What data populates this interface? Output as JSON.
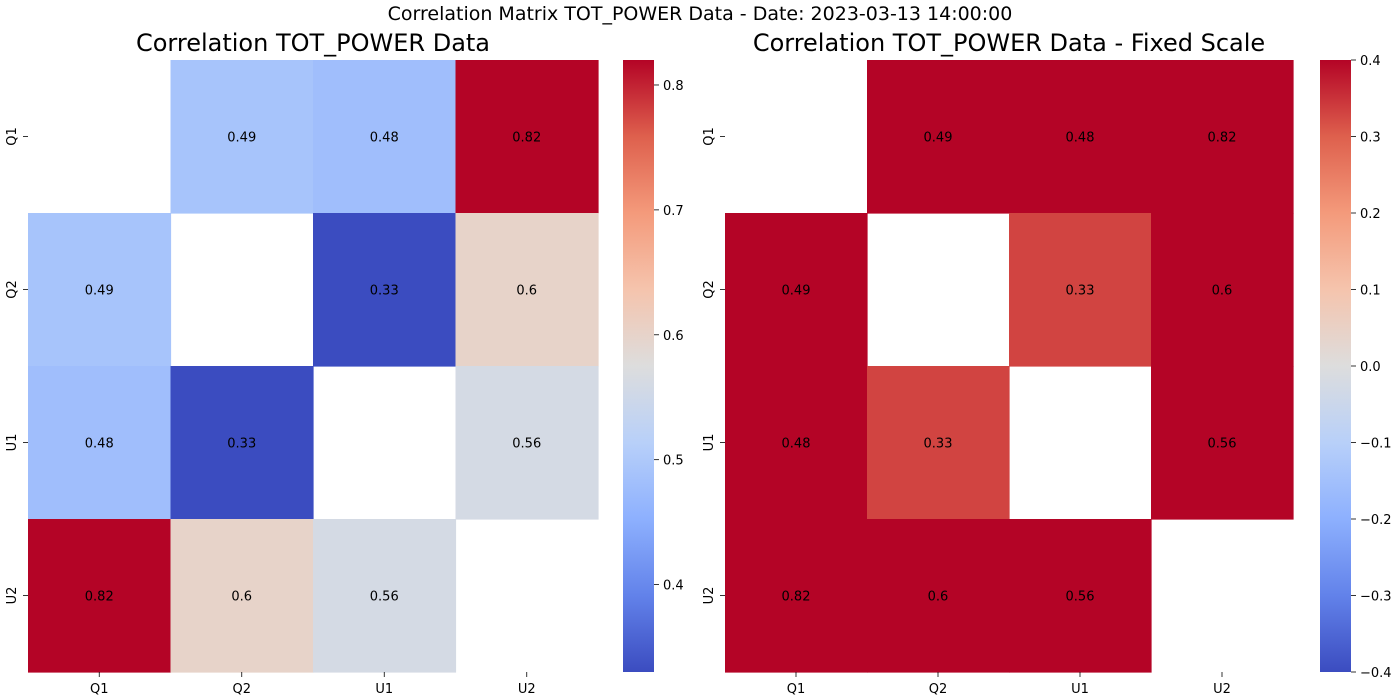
{
  "suptitle": "Correlation Matrix TOT_POWER Data - Date: 2023-03-13 14:00:00",
  "chart_data": [
    {
      "type": "heatmap",
      "title": "Correlation TOT_POWER Data",
      "row_labels": [
        "Q1",
        "Q2",
        "U1",
        "U2"
      ],
      "col_labels": [
        "Q1",
        "Q2",
        "U1",
        "U2"
      ],
      "matrix": [
        [
          null,
          0.49,
          0.48,
          0.82
        ],
        [
          0.49,
          null,
          0.33,
          0.6
        ],
        [
          0.48,
          0.33,
          null,
          0.56
        ],
        [
          0.82,
          0.6,
          0.56,
          null
        ]
      ],
      "annotations": [
        [
          null,
          "0.49",
          "0.48",
          "0.82"
        ],
        [
          "0.49",
          null,
          "0.33",
          "0.6"
        ],
        [
          "0.48",
          "0.33",
          null,
          "0.56"
        ],
        [
          "0.82",
          "0.6",
          "0.56",
          null
        ]
      ],
      "colormap": "coolwarm",
      "vmin": 0.33,
      "vmax": 0.82,
      "colorbar_ticks": [
        0.4,
        0.5,
        0.6,
        0.7,
        0.8
      ],
      "colorbar_tick_labels": [
        "0.4",
        "0.5",
        "0.6",
        "0.7",
        "0.8"
      ]
    },
    {
      "type": "heatmap",
      "title": "Correlation TOT_POWER Data - Fixed Scale",
      "row_labels": [
        "Q1",
        "Q2",
        "U1",
        "U2"
      ],
      "col_labels": [
        "Q1",
        "Q2",
        "U1",
        "U2"
      ],
      "matrix": [
        [
          null,
          0.49,
          0.48,
          0.82
        ],
        [
          0.49,
          null,
          0.33,
          0.6
        ],
        [
          0.48,
          0.33,
          null,
          0.56
        ],
        [
          0.82,
          0.6,
          0.56,
          null
        ]
      ],
      "annotations": [
        [
          null,
          "0.49",
          "0.48",
          "0.82"
        ],
        [
          "0.49",
          null,
          "0.33",
          "0.6"
        ],
        [
          "0.48",
          "0.33",
          null,
          "0.56"
        ],
        [
          "0.82",
          "0.6",
          "0.56",
          null
        ]
      ],
      "colormap": "coolwarm",
      "vmin": -0.4,
      "vmax": 0.4,
      "colorbar_ticks": [
        -0.4,
        -0.3,
        -0.2,
        -0.1,
        0.0,
        0.1,
        0.2,
        0.3,
        0.4
      ],
      "colorbar_tick_labels": [
        "−0.4",
        "−0.3",
        "−0.2",
        "−0.1",
        "0.0",
        "0.1",
        "0.2",
        "0.3",
        "0.4"
      ]
    }
  ]
}
